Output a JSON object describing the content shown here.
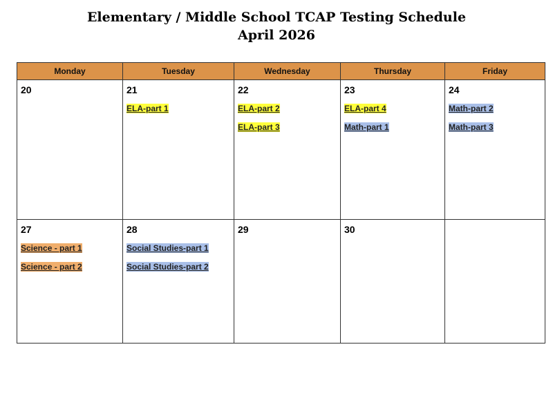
{
  "title": "Elementary / Middle School TCAP Testing Schedule",
  "subtitle": "April 2026",
  "colors": {
    "header": "#dc9349",
    "ela": "#ffff3c",
    "math_social": "#a9bfe8",
    "science": "#f0ae6c"
  },
  "days": [
    "Monday",
    "Tuesday",
    "Wednesday",
    "Thursday",
    "Friday"
  ],
  "weeks": [
    [
      {
        "date": "20",
        "events": []
      },
      {
        "date": "21",
        "events": [
          {
            "label": "ELA-part 1",
            "color": "#ffff3c"
          }
        ]
      },
      {
        "date": "22",
        "events": [
          {
            "label": "ELA-part 2",
            "color": "#ffff3c"
          },
          {
            "label": "ELA-part 3",
            "color": "#ffff3c"
          }
        ]
      },
      {
        "date": "23",
        "events": [
          {
            "label": "ELA-part 4",
            "color": "#ffff3c"
          },
          {
            "label": "Math-part 1",
            "color": "#a9bfe8"
          }
        ]
      },
      {
        "date": "24",
        "events": [
          {
            "label": "Math-part 2",
            "color": "#a9bfe8"
          },
          {
            "label": "Math-part 3",
            "color": "#a9bfe8"
          }
        ]
      }
    ],
    [
      {
        "date": "27",
        "events": [
          {
            "label": "Science - part 1",
            "color": "#f0ae6c"
          },
          {
            "label": "Science - part 2",
            "color": "#f0ae6c"
          }
        ]
      },
      {
        "date": "28",
        "events": [
          {
            "label": "Social Studies-part 1",
            "color": "#a9bfe8"
          },
          {
            "label": "Social Studies-part 2",
            "color": "#a9bfe8"
          }
        ]
      },
      {
        "date": "29",
        "events": []
      },
      {
        "date": "30",
        "events": []
      },
      {
        "date": "",
        "events": []
      }
    ]
  ]
}
